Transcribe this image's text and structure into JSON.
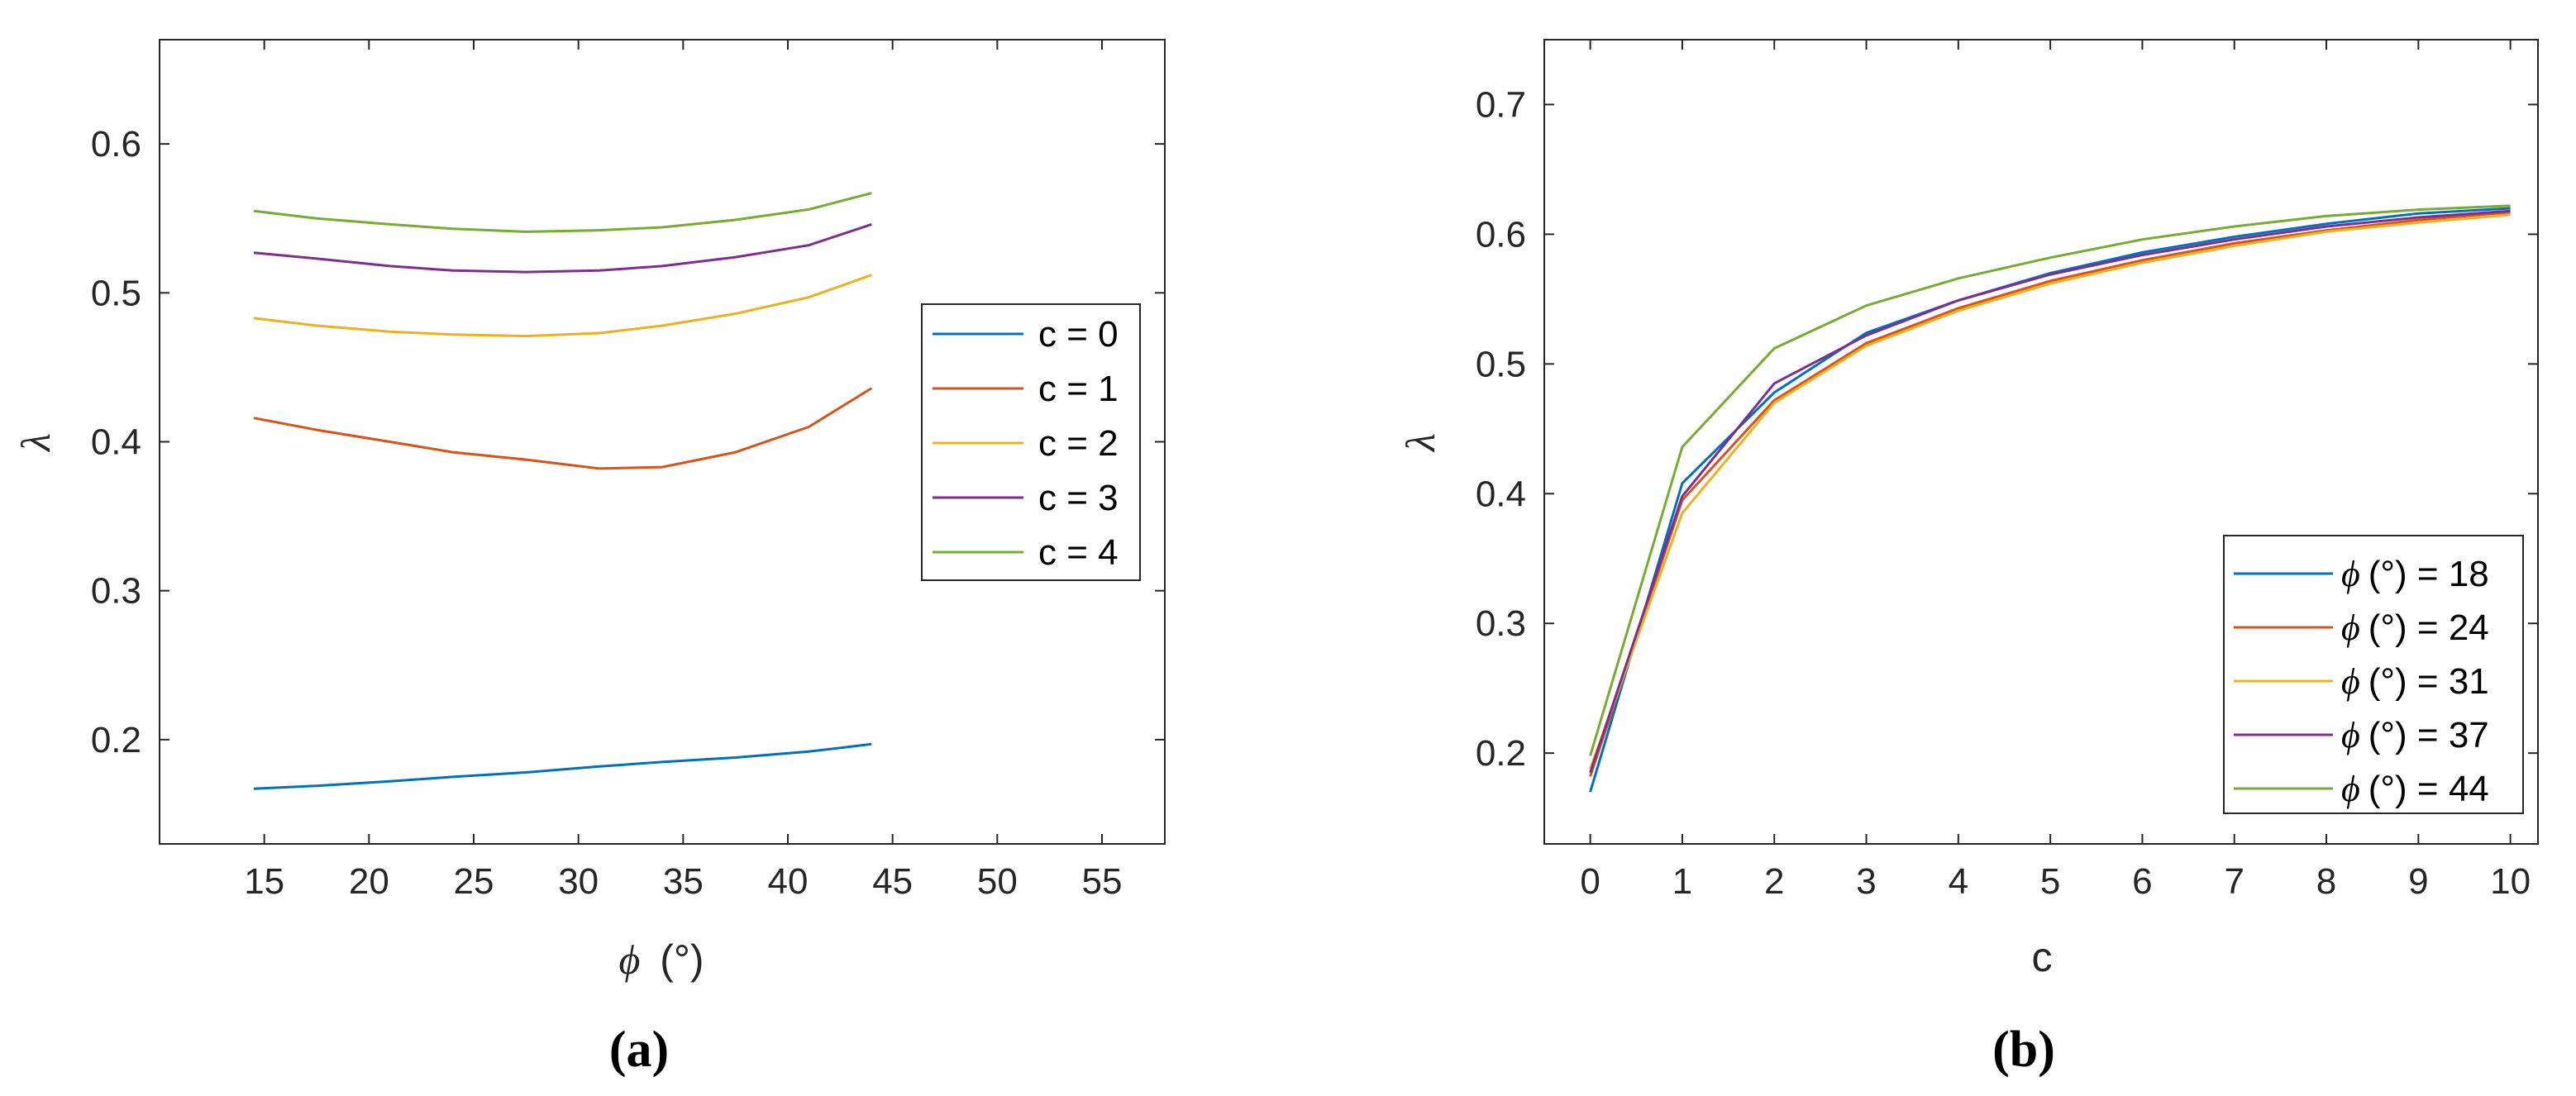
{
  "chart_data": [
    {
      "type": "line",
      "caption": "(a)",
      "xlabel_symbol": "ϕ",
      "xlabel_unit": "(°)",
      "ylabel": "λ",
      "xlim": [
        10,
        58
      ],
      "ylim": [
        0.13,
        0.67
      ],
      "xticks": [
        15,
        20,
        25,
        30,
        35,
        40,
        45,
        50,
        55
      ],
      "yticks": [
        0.2,
        0.3,
        0.4,
        0.5,
        0.6
      ],
      "xtick_labels": [
        "15",
        "20",
        "25",
        "30",
        "35",
        "40",
        "45",
        "50",
        "55"
      ],
      "ytick_labels": [
        "0.2",
        "0.3",
        "0.4",
        "0.5",
        "0.6"
      ],
      "legend_position": "right",
      "x": [
        14.5,
        17.5,
        21,
        24,
        27.5,
        31,
        34,
        37.5,
        41,
        44
      ],
      "series": [
        {
          "name": "c = 0",
          "color": "#0072BD",
          "values": [
            0.167,
            0.169,
            0.172,
            0.175,
            0.178,
            0.182,
            0.185,
            0.188,
            0.192,
            0.197
          ]
        },
        {
          "name": "c = 1",
          "color": "#D95319",
          "values": [
            0.416,
            0.408,
            0.4,
            0.393,
            0.388,
            0.382,
            0.383,
            0.393,
            0.41,
            0.436
          ]
        },
        {
          "name": "c = 2",
          "color": "#EDB120",
          "values": [
            0.483,
            0.478,
            0.474,
            0.472,
            0.471,
            0.473,
            0.478,
            0.486,
            0.497,
            0.512
          ]
        },
        {
          "name": "c = 3",
          "color": "#7E2F8E",
          "values": [
            0.527,
            0.523,
            0.518,
            0.515,
            0.514,
            0.515,
            0.518,
            0.524,
            0.532,
            0.546
          ]
        },
        {
          "name": "c = 4",
          "color": "#77AC30",
          "values": [
            0.555,
            0.55,
            0.546,
            0.543,
            0.541,
            0.542,
            0.544,
            0.549,
            0.556,
            0.567
          ]
        }
      ]
    },
    {
      "type": "line",
      "caption": "(b)",
      "xlabel": "c",
      "ylabel": "λ",
      "xlim": [
        -0.5,
        10.3
      ],
      "ylim": [
        0.13,
        0.75
      ],
      "xticks": [
        0,
        1,
        2,
        3,
        4,
        5,
        6,
        7,
        8,
        9,
        10
      ],
      "yticks": [
        0.2,
        0.3,
        0.4,
        0.5,
        0.6,
        0.7
      ],
      "xtick_labels": [
        "0",
        "1",
        "2",
        "3",
        "4",
        "5",
        "6",
        "7",
        "8",
        "9",
        "10"
      ],
      "ytick_labels": [
        "0.2",
        "0.3",
        "0.4",
        "0.5",
        "0.6",
        "0.7"
      ],
      "legend_position": "bottom-right",
      "x": [
        0,
        1,
        2,
        3,
        4,
        5,
        6,
        7,
        8,
        9,
        10
      ],
      "series": [
        {
          "name_symbol": "ϕ",
          "name_rest": "(°) = 18",
          "color": "#0072BD",
          "values": [
            0.17,
            0.408,
            0.478,
            0.524,
            0.549,
            0.57,
            0.586,
            0.598,
            0.608,
            0.616,
            0.62
          ]
        },
        {
          "name_symbol": "ϕ",
          "name_rest": "(°) = 24",
          "color": "#D95319",
          "values": [
            0.182,
            0.395,
            0.472,
            0.516,
            0.543,
            0.564,
            0.58,
            0.593,
            0.603,
            0.611,
            0.617
          ]
        },
        {
          "name_symbol": "ϕ",
          "name_rest": "(°) = 31",
          "color": "#EDB120",
          "values": [
            0.188,
            0.385,
            0.47,
            0.514,
            0.541,
            0.562,
            0.578,
            0.591,
            0.602,
            0.609,
            0.615
          ]
        },
        {
          "name_symbol": "ϕ",
          "name_rest": "(°) = 37",
          "color": "#7E2F8E",
          "values": [
            0.185,
            0.398,
            0.485,
            0.522,
            0.549,
            0.569,
            0.584,
            0.596,
            0.606,
            0.613,
            0.618
          ]
        },
        {
          "name_symbol": "ϕ",
          "name_rest": "(°) = 44",
          "color": "#77AC30",
          "values": [
            0.198,
            0.436,
            0.512,
            0.545,
            0.566,
            0.582,
            0.596,
            0.606,
            0.614,
            0.619,
            0.622
          ]
        }
      ]
    }
  ]
}
